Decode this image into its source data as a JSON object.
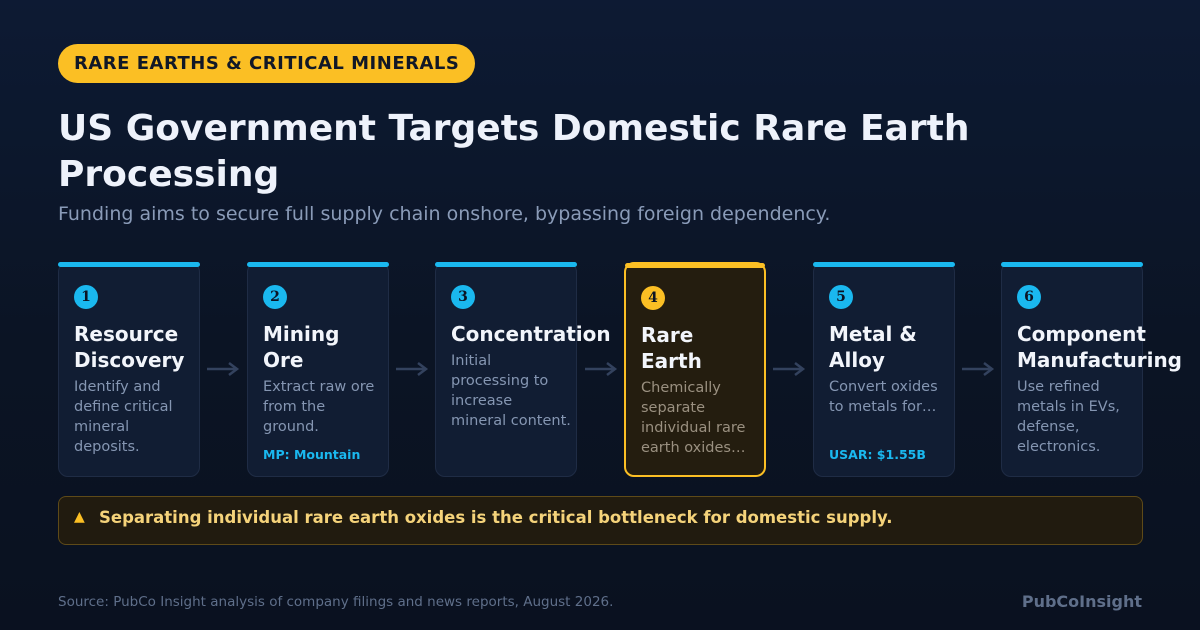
{
  "badge": "RARE EARTHS & CRITICAL MINERALS",
  "title": "US Government Targets Domestic Rare Earth Processing",
  "subtitle": "Funding aims to secure full supply chain onshore, bypassing foreign dependency.",
  "steps": [
    {
      "number": "1",
      "name": "Resource\nDiscovery",
      "desc": "Identify and define critical mineral deposits.",
      "note": ""
    },
    {
      "number": "2",
      "name": "Mining\nOre",
      "desc": "Extract raw ore from the ground.",
      "note": "MP: Mountain"
    },
    {
      "number": "3",
      "name": "Concentration",
      "desc": "Initial processing to increase mineral content.",
      "note": ""
    },
    {
      "number": "4",
      "name": "Rare\nEarth",
      "desc": "Chemically separate individual rare earth oxides…",
      "note": ""
    },
    {
      "number": "5",
      "name": "Metal &\nAlloy",
      "desc": "Convert oxides to metals for…",
      "note": "USAR: $1.55B"
    },
    {
      "number": "6",
      "name": "Component\nManufacturing",
      "desc": "Use refined metals in EVs, defense, electronics.",
      "note": ""
    }
  ],
  "highlight_step": "4",
  "callout": {
    "icon": "warning-icon",
    "text": "Separating individual rare earth oxides is the critical bottleneck for domestic supply."
  },
  "source": "Source: PubCo Insight analysis of company filings and news reports, August 2026.",
  "brand": "PubCoInsight",
  "colors": {
    "accent_blue": "#1ab8ef",
    "accent_gold": "#fbbf24",
    "background": "#0b1424"
  }
}
